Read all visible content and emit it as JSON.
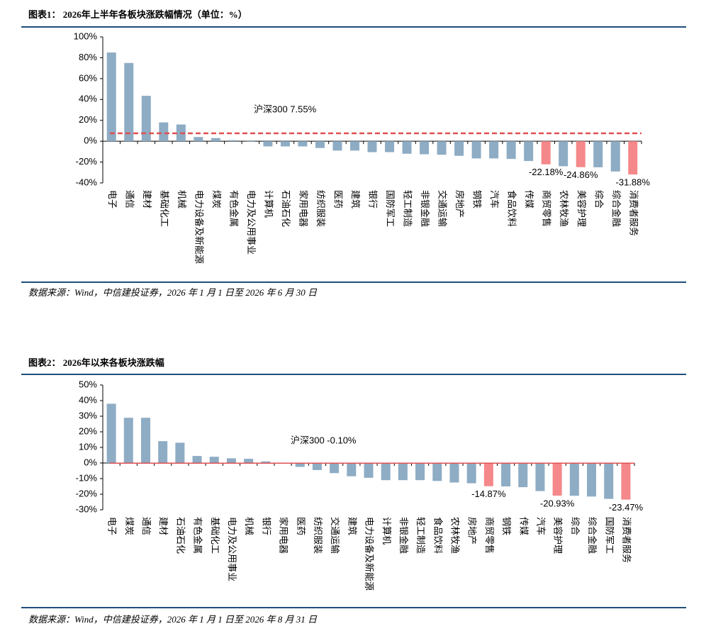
{
  "chart_data": [
    {
      "type": "bar",
      "title": "图表1：  2026年上半年各板块涨跌幅情况（单位：%）",
      "source": "数据来源：Wind，中信建投证券，2026 年 1 月 1 日至 2026 年 6 月 30 日",
      "categories": [
        "电子",
        "通信",
        "建材",
        "基础化工",
        "机械",
        "电力设备及新能源",
        "煤炭",
        "有色金属",
        "电力及公用事业",
        "计算机",
        "石油石化",
        "家用电器",
        "纺织服装",
        "医药",
        "建筑",
        "银行",
        "国防军工",
        "轻工制造",
        "非银金融",
        "交通运输",
        "房地产",
        "钢铁",
        "汽车",
        "食品饮料",
        "传媒",
        "商贸零售",
        "农林牧渔",
        "美容护理",
        "综合",
        "综合金融",
        "消费者服务"
      ],
      "values": [
        85,
        75,
        43.5,
        18,
        16,
        4,
        3,
        1,
        -0.5,
        -5,
        -5,
        -5,
        -6.5,
        -9,
        -9,
        -10.5,
        -10.5,
        -12,
        -12.5,
        -13,
        -14,
        -16.5,
        -16.5,
        -17,
        -19,
        -22.18,
        -24,
        -24.86,
        -25,
        -29,
        -31.88
      ],
      "value_labels": [
        null,
        null,
        null,
        null,
        null,
        null,
        null,
        null,
        null,
        null,
        null,
        null,
        null,
        null,
        null,
        null,
        null,
        null,
        null,
        null,
        null,
        null,
        null,
        null,
        null,
        "-22.18%",
        null,
        "-24.86%",
        null,
        null,
        "-31.88%"
      ],
      "colors": [
        "#8eacc4",
        "#8eacc4",
        "#8eacc4",
        "#8eacc4",
        "#8eacc4",
        "#8eacc4",
        "#8eacc4",
        "#8eacc4",
        "#8eacc4",
        "#8eacc4",
        "#8eacc4",
        "#8eacc4",
        "#8eacc4",
        "#8eacc4",
        "#8eacc4",
        "#8eacc4",
        "#8eacc4",
        "#8eacc4",
        "#8eacc4",
        "#8eacc4",
        "#8eacc4",
        "#8eacc4",
        "#8eacc4",
        "#8eacc4",
        "#8eacc4",
        "#f4888a",
        "#8eacc4",
        "#f4888a",
        "#8eacc4",
        "#8eacc4",
        "#f4888a"
      ],
      "ylim": [
        -40,
        100
      ],
      "yticks": [
        {
          "value": -40,
          "label": "-40%"
        },
        {
          "value": -20,
          "label": "-20%"
        },
        {
          "value": 0,
          "label": "0%"
        },
        {
          "value": 20,
          "label": "20%"
        },
        {
          "value": 40,
          "label": "40%"
        },
        {
          "value": 60,
          "label": "60%"
        },
        {
          "value": 80,
          "label": "80%"
        },
        {
          "value": 100,
          "label": "100%"
        }
      ],
      "reference": {
        "value": 7.55,
        "label": "沪深300 7.55%",
        "color": "#e05050",
        "dashed": true
      }
    },
    {
      "type": "bar",
      "title": "图表2：  2026年以来各板块涨跌幅",
      "source": "数据来源：Wind，中信建投证券，2026 年 1 月 1 日至 2026 年 8 月 31 日",
      "categories": [
        "电子",
        "煤炭",
        "通信",
        "建材",
        "石油石化",
        "有色金属",
        "基础化工",
        "电力及公用事业",
        "机械",
        "银行",
        "家用电器",
        "医药",
        "纺织服装",
        "交通运输",
        "建筑",
        "电力设备及新能源",
        "计算机",
        "非银金融",
        "轻工制造",
        "食品饮料",
        "农林牧渔",
        "房地产",
        "商贸零售",
        "钢铁",
        "传媒",
        "汽车",
        "美容护理",
        "综合",
        "综合金融",
        "国防军工",
        "消费者服务"
      ],
      "values": [
        38,
        29,
        29,
        14,
        13,
        4.5,
        4,
        3,
        2.7,
        1,
        0,
        -2.5,
        -4.5,
        -6.5,
        -8.5,
        -9.5,
        -11,
        -11,
        -11,
        -11.5,
        -12.5,
        -13,
        -14.87,
        -15,
        -15.5,
        -18,
        -20.93,
        -21,
        -21.5,
        -23,
        -23.47
      ],
      "value_labels": [
        null,
        null,
        null,
        null,
        null,
        null,
        null,
        null,
        null,
        null,
        null,
        null,
        null,
        null,
        null,
        null,
        null,
        null,
        null,
        null,
        null,
        null,
        "-14.87%",
        null,
        null,
        null,
        "-20.93%",
        null,
        null,
        null,
        "-23.47%"
      ],
      "colors": [
        "#8eacc4",
        "#8eacc4",
        "#8eacc4",
        "#8eacc4",
        "#8eacc4",
        "#8eacc4",
        "#8eacc4",
        "#8eacc4",
        "#8eacc4",
        "#8eacc4",
        "#8eacc4",
        "#8eacc4",
        "#8eacc4",
        "#8eacc4",
        "#8eacc4",
        "#8eacc4",
        "#8eacc4",
        "#8eacc4",
        "#8eacc4",
        "#8eacc4",
        "#8eacc4",
        "#8eacc4",
        "#f4888a",
        "#8eacc4",
        "#8eacc4",
        "#8eacc4",
        "#f4888a",
        "#8eacc4",
        "#8eacc4",
        "#8eacc4",
        "#f4888a"
      ],
      "ylim": [
        -30,
        50
      ],
      "yticks": [
        {
          "value": -30,
          "label": "-30%"
        },
        {
          "value": -20,
          "label": "-20%"
        },
        {
          "value": -10,
          "label": "-10%"
        },
        {
          "value": 0,
          "label": "0%"
        },
        {
          "value": 10,
          "label": "10%"
        },
        {
          "value": 20,
          "label": "20%"
        },
        {
          "value": 30,
          "label": "30%"
        },
        {
          "value": 40,
          "label": "40%"
        },
        {
          "value": 50,
          "label": "50%"
        }
      ],
      "reference": {
        "value": -0.1,
        "label": "沪深300  -0.10%",
        "color": "#e05050",
        "dashed": false
      }
    }
  ]
}
